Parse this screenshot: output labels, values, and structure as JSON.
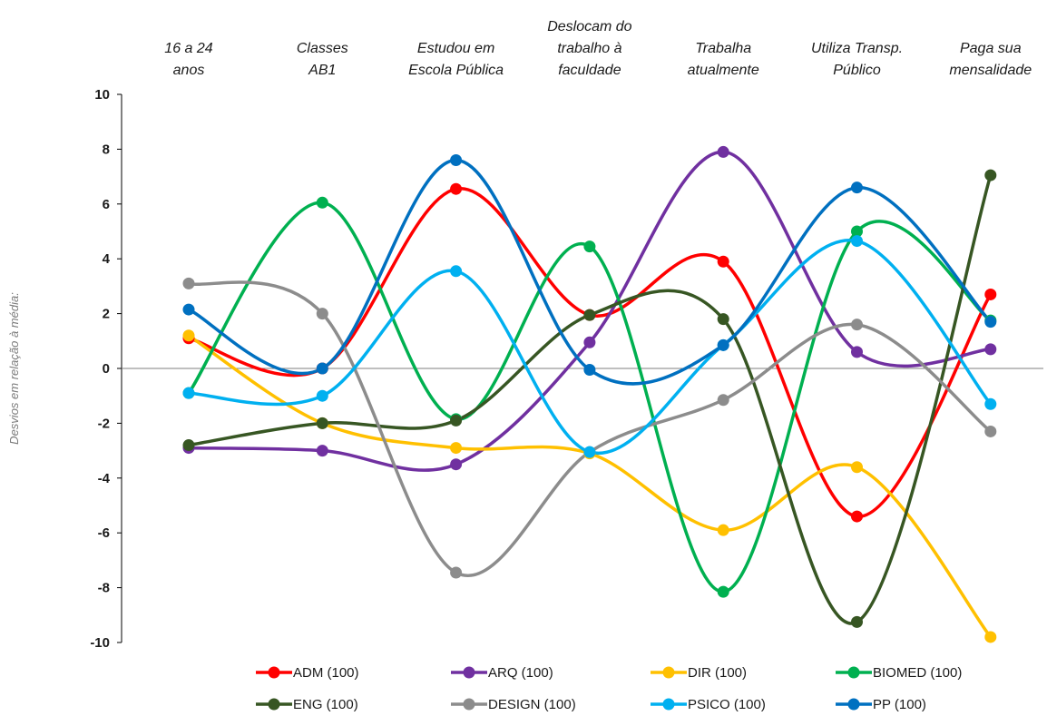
{
  "chart_data": {
    "type": "line",
    "smooth": true,
    "categories": [
      [
        "16 a 24",
        "anos"
      ],
      [
        "Classes",
        "AB1"
      ],
      [
        "Estudou em",
        "Escola Pública"
      ],
      [
        "Deslocam do",
        "trabalho à",
        "faculdade"
      ],
      [
        "Trabalha",
        "atualmente"
      ],
      [
        "Utiliza Transp.",
        "Público"
      ],
      [
        "Paga sua",
        "mensalidade"
      ]
    ],
    "category_labels_position": "top",
    "ylabel": "Desvios em relação à média:",
    "ylim": [
      -10,
      10
    ],
    "yticks": [
      10,
      8,
      6,
      4,
      2,
      0,
      -2,
      -4,
      -6,
      -8,
      -10
    ],
    "zero_line": true,
    "grid": false,
    "legend_position": "bottom",
    "series": [
      {
        "name": "ADM (100)",
        "color": "#ff0000",
        "values": [
          1.1,
          0.0,
          6.55,
          1.95,
          3.9,
          -5.4,
          2.7
        ]
      },
      {
        "name": "ARQ (100)",
        "color": "#7030a0",
        "values": [
          -2.9,
          -3.0,
          -3.5,
          0.95,
          7.9,
          0.6,
          0.7
        ]
      },
      {
        "name": "DIR (100)",
        "color": "#ffc000",
        "values": [
          1.2,
          -2.0,
          -2.9,
          -3.1,
          -5.9,
          -3.6,
          -9.8
        ]
      },
      {
        "name": "BIOMED (100)",
        "color": "#00b050",
        "values": [
          -0.9,
          6.05,
          -1.85,
          4.45,
          -8.15,
          5.0,
          1.75
        ]
      },
      {
        "name": "ENG (100)",
        "color": "#375623",
        "values": [
          -2.8,
          -2.0,
          -1.9,
          1.95,
          1.8,
          -9.25,
          7.05
        ]
      },
      {
        "name": "DESIGN (100)",
        "color": "#8c8c8c",
        "values": [
          3.1,
          2.0,
          -7.45,
          -3.05,
          -1.15,
          1.6,
          -2.3
        ]
      },
      {
        "name": "PSICO (100)",
        "color": "#00b0f0",
        "values": [
          -0.9,
          -1.0,
          3.55,
          -3.05,
          0.85,
          4.65,
          -1.3
        ]
      },
      {
        "name": "PP (100)",
        "color": "#0070c0",
        "values": [
          2.15,
          0.0,
          7.6,
          -0.05,
          0.85,
          6.6,
          1.7
        ]
      }
    ]
  }
}
